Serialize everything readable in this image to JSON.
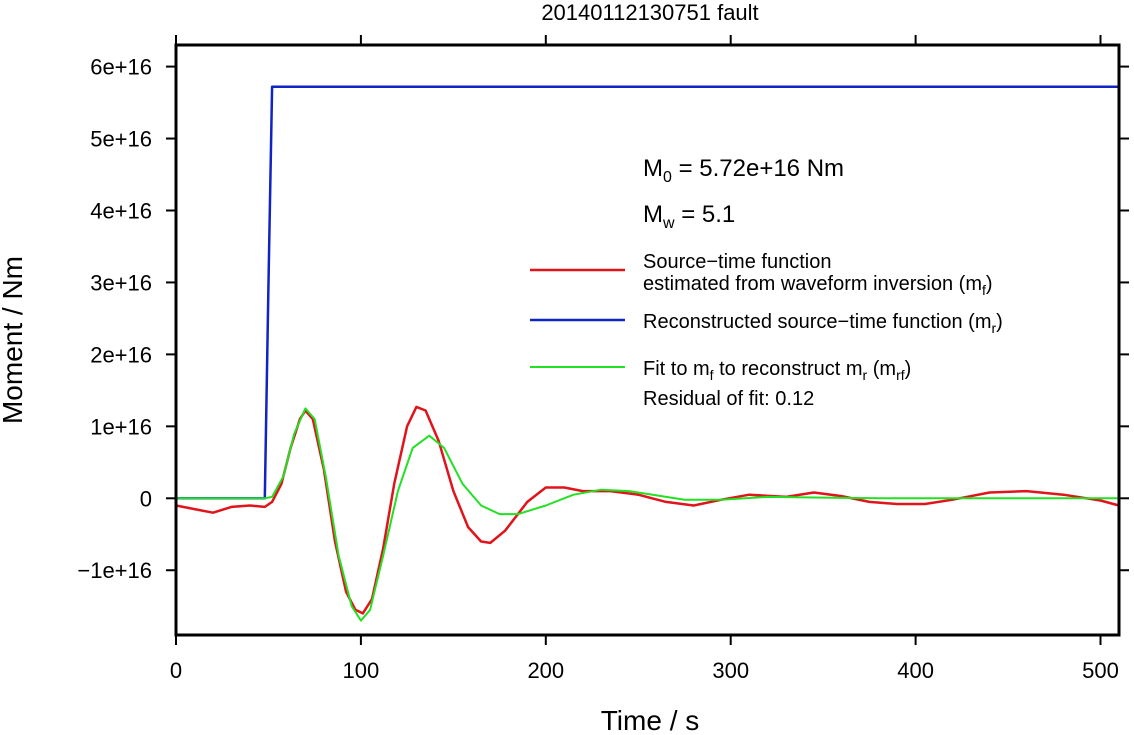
{
  "chart_data": {
    "type": "line",
    "title": "20140112130751 fault",
    "xlabel": "Time / s",
    "ylabel": "Moment / Nm",
    "xlim": [
      0,
      510
    ],
    "ylim": [
      -1.9e+16,
      6.3e+16
    ],
    "x_ticks": [
      0,
      100,
      200,
      300,
      400,
      500
    ],
    "x_tick_labels": [
      "0",
      "100",
      "200",
      "300",
      "400",
      "500"
    ],
    "y_ticks": [
      -1e+16,
      0,
      1e+16,
      2e+16,
      3e+16,
      4e+16,
      5e+16,
      6e+16
    ],
    "y_tick_labels": [
      "−1e+16",
      "0",
      "1e+16",
      "2e+16",
      "3e+16",
      "4e+16",
      "5e+16",
      "6e+16"
    ],
    "grid": false,
    "legend_position": "right",
    "annotations": {
      "m0": {
        "symbol": "M",
        "sub": "0",
        "text": " = 5.72e+16 Nm"
      },
      "mw": {
        "symbol": "M",
        "sub": "w",
        "text": " = 5.1"
      },
      "residual": "Residual of fit: 0.12"
    },
    "legend": [
      {
        "id": "mf",
        "color": "#e0141a",
        "lines": [
          [
            {
              "t": "Source−time function"
            }
          ],
          [
            {
              "t": "estimated from waveform inversion (m"
            },
            {
              "t": "f",
              "sub": true
            },
            {
              "t": ")"
            }
          ]
        ]
      },
      {
        "id": "mr",
        "color": "#1023c4",
        "lines": [
          [
            {
              "t": "Reconstructed source−time function (m"
            },
            {
              "t": "r",
              "sub": true
            },
            {
              "t": ")"
            }
          ]
        ]
      },
      {
        "id": "mrf",
        "color": "#22e022",
        "lines": [
          [
            {
              "t": "Fit to m"
            },
            {
              "t": "f",
              "sub": true
            },
            {
              "t": " to reconstruct m"
            },
            {
              "t": "r",
              "sub": true
            },
            {
              "t": " (m"
            },
            {
              "t": "rf",
              "sub": true
            },
            {
              "t": ")"
            }
          ]
        ]
      }
    ],
    "series": [
      {
        "id": "mr",
        "color": "#1023c4",
        "points": [
          [
            0,
            0
          ],
          [
            48,
            0
          ],
          [
            50,
            3e+16
          ],
          [
            52,
            5.72e+16
          ],
          [
            510,
            5.72e+16
          ]
        ]
      },
      {
        "id": "mf",
        "color": "#e0141a",
        "points": [
          [
            0,
            -1000000000000000.0
          ],
          [
            10,
            -1500000000000000.0
          ],
          [
            20,
            -2000000000000000.0
          ],
          [
            30,
            -1200000000000000.0
          ],
          [
            40,
            -1000000000000000.0
          ],
          [
            48,
            -1200000000000000.0
          ],
          [
            52,
            -500000000000000.0
          ],
          [
            57,
            2000000000000000.0
          ],
          [
            62,
            7000000000000000.0
          ],
          [
            67,
            1.1e+16
          ],
          [
            70,
            1.22e+16
          ],
          [
            74,
            1.1e+16
          ],
          [
            80,
            4000000000000000.0
          ],
          [
            86,
            -6000000000000000.0
          ],
          [
            92,
            -1.3e+16
          ],
          [
            97,
            -1.55e+16
          ],
          [
            101,
            -1.6e+16
          ],
          [
            106,
            -1.4e+16
          ],
          [
            112,
            -7000000000000000.0
          ],
          [
            118,
            2000000000000000.0
          ],
          [
            125,
            1e+16
          ],
          [
            130,
            1.27e+16
          ],
          [
            135,
            1.22e+16
          ],
          [
            142,
            8000000000000000.0
          ],
          [
            150,
            1000000000000000.0
          ],
          [
            158,
            -4000000000000000.0
          ],
          [
            165,
            -6000000000000000.0
          ],
          [
            170,
            -6200000000000000.0
          ],
          [
            178,
            -4500000000000000.0
          ],
          [
            190,
            -500000000000000.0
          ],
          [
            200,
            1500000000000000.0
          ],
          [
            210,
            1500000000000000.0
          ],
          [
            220,
            1000000000000000.0
          ],
          [
            235,
            1000000000000000.0
          ],
          [
            250,
            500000000000000.0
          ],
          [
            265,
            -500000000000000.0
          ],
          [
            280,
            -1000000000000000.0
          ],
          [
            295,
            -200000000000000.0
          ],
          [
            310,
            500000000000000.0
          ],
          [
            330,
            200000000000000.0
          ],
          [
            345,
            800000000000000.0
          ],
          [
            360,
            300000000000000.0
          ],
          [
            375,
            -500000000000000.0
          ],
          [
            390,
            -800000000000000.0
          ],
          [
            405,
            -800000000000000.0
          ],
          [
            420,
            -200000000000000.0
          ],
          [
            440,
            800000000000000.0
          ],
          [
            460,
            1000000000000000.0
          ],
          [
            480,
            500000000000000.0
          ],
          [
            500,
            -300000000000000.0
          ],
          [
            510,
            -1000000000000000.0
          ]
        ]
      },
      {
        "id": "mrf",
        "color": "#22e022",
        "points": [
          [
            0,
            0
          ],
          [
            48,
            0
          ],
          [
            52,
            200000000000000.0
          ],
          [
            58,
            3000000000000000.0
          ],
          [
            64,
            9000000000000000.0
          ],
          [
            70,
            1.25e+16
          ],
          [
            75,
            1.1e+16
          ],
          [
            81,
            3000000000000000.0
          ],
          [
            88,
            -8000000000000000.0
          ],
          [
            95,
            -1.5e+16
          ],
          [
            100,
            -1.7e+16
          ],
          [
            105,
            -1.55e+16
          ],
          [
            112,
            -8000000000000000.0
          ],
          [
            120,
            1000000000000000.0
          ],
          [
            128,
            7000000000000000.0
          ],
          [
            137,
            8700000000000000.0
          ],
          [
            145,
            7000000000000000.0
          ],
          [
            155,
            2000000000000000.0
          ],
          [
            165,
            -1000000000000000.0
          ],
          [
            175,
            -2200000000000000.0
          ],
          [
            185,
            -2200000000000000.0
          ],
          [
            200,
            -1000000000000000.0
          ],
          [
            215,
            500000000000000.0
          ],
          [
            230,
            1200000000000000.0
          ],
          [
            245,
            1000000000000000.0
          ],
          [
            260,
            400000000000000.0
          ],
          [
            275,
            -200000000000000.0
          ],
          [
            295,
            -200000000000000.0
          ],
          [
            320,
            200000000000000.0
          ],
          [
            350,
            100000000000000.0
          ],
          [
            380,
            0.0
          ],
          [
            420,
            0.0
          ],
          [
            510,
            0.0
          ]
        ]
      }
    ]
  }
}
